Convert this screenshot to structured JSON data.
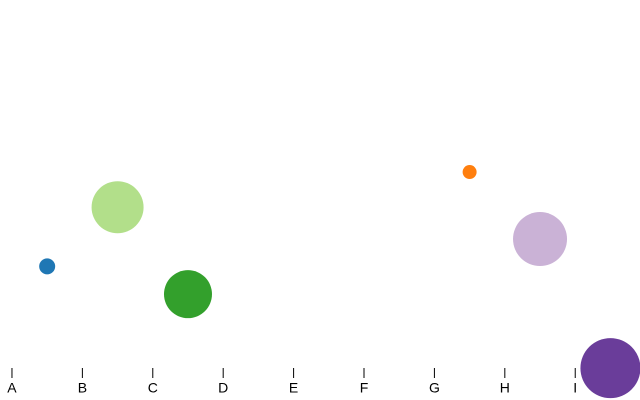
{
  "chart_data": {
    "type": "bubble",
    "x": [
      0.5,
      1.5,
      2.5,
      6.5,
      7.5,
      8.5
    ],
    "values": [
      28,
      44,
      20.5,
      53.5,
      35.4,
      0.5
    ],
    "sizes": [
      8,
      26,
      24,
      7,
      27,
      30
    ],
    "colors": [
      "#1f77b4",
      "#b2df8a",
      "#33a02c",
      "#ff7f0e",
      "#cab2d6",
      "#6a3d9a"
    ],
    "xlim": [
      -0.17,
      8.92
    ],
    "xticks": [
      {
        "value": 0,
        "label": "A"
      },
      {
        "value": 1,
        "label": "B"
      },
      {
        "value": 2,
        "label": "C"
      },
      {
        "value": 3,
        "label": "D"
      },
      {
        "value": 4,
        "label": "E"
      },
      {
        "value": 5,
        "label": "F"
      },
      {
        "value": 6,
        "label": "G"
      },
      {
        "value": 7,
        "label": "H"
      },
      {
        "value": 8,
        "label": "I"
      }
    ],
    "ylim": [
      0,
      100
    ]
  }
}
